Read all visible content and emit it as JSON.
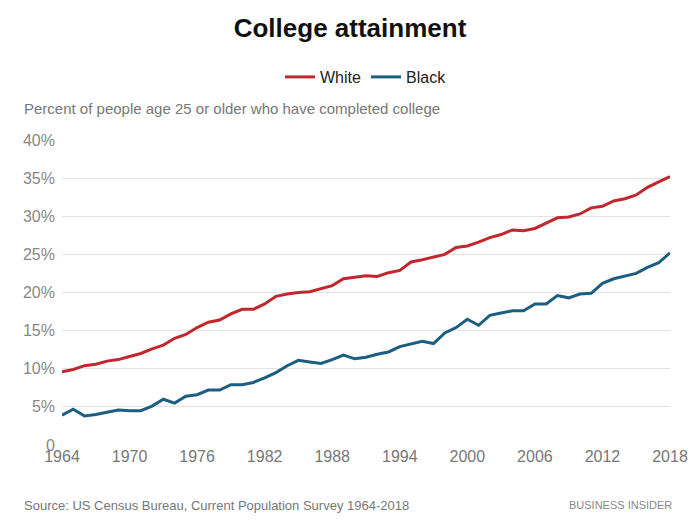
{
  "chart_data": {
    "type": "line",
    "title": "College attainment",
    "subtitle": "Percent of people age 25 or older who have completed college",
    "annotations": [
      "Source: US Census Bureau, Current Population Survey 1964-2018",
      "BUSINESS INSIDER"
    ],
    "x": [
      1964,
      1965,
      1966,
      1967,
      1968,
      1969,
      1970,
      1971,
      1972,
      1973,
      1974,
      1975,
      1976,
      1977,
      1978,
      1979,
      1980,
      1981,
      1982,
      1983,
      1984,
      1985,
      1986,
      1987,
      1988,
      1989,
      1990,
      1991,
      1992,
      1993,
      1994,
      1995,
      1996,
      1997,
      1998,
      1999,
      2000,
      2001,
      2002,
      2003,
      2004,
      2005,
      2006,
      2007,
      2008,
      2009,
      2010,
      2011,
      2012,
      2013,
      2014,
      2015,
      2016,
      2017,
      2018
    ],
    "series": [
      {
        "name": "White",
        "color": "#c1272d",
        "values": [
          9.6,
          9.9,
          10.4,
          10.6,
          11.0,
          11.2,
          11.6,
          12.0,
          12.6,
          13.1,
          14.0,
          14.5,
          15.4,
          16.1,
          16.4,
          17.2,
          17.8,
          17.8,
          18.5,
          19.5,
          19.8,
          20.0,
          20.1,
          20.5,
          20.9,
          21.8,
          22.0,
          22.2,
          22.1,
          22.6,
          22.9,
          24.0,
          24.3,
          24.6,
          25.0,
          25.9,
          26.1,
          26.6,
          27.2,
          27.6,
          28.2,
          28.1,
          28.4,
          29.1,
          29.8,
          29.9,
          30.3,
          31.1,
          31.3,
          32.0,
          32.3,
          32.8,
          33.8,
          34.5,
          35.2
        ]
      },
      {
        "name": "Black",
        "color": "#1b5e80",
        "values": [
          3.9,
          4.7,
          3.8,
          4.0,
          4.3,
          4.6,
          4.5,
          4.5,
          5.1,
          6.0,
          5.5,
          6.4,
          6.6,
          7.2,
          7.2,
          7.9,
          7.9,
          8.2,
          8.8,
          9.5,
          10.4,
          11.1,
          10.9,
          10.7,
          11.2,
          11.8,
          11.3,
          11.5,
          11.9,
          12.2,
          12.9,
          13.2,
          13.6,
          13.3,
          14.7,
          15.4,
          16.5,
          15.7,
          17.0,
          17.3,
          17.6,
          17.6,
          18.5,
          18.5,
          19.6,
          19.3,
          19.8,
          19.9,
          21.2,
          21.8,
          22.2,
          22.5,
          23.3,
          23.9,
          25.2
        ]
      }
    ],
    "xlim": [
      1964,
      2018
    ],
    "xticks": [
      1964,
      1970,
      1976,
      1982,
      1988,
      1994,
      2000,
      2006,
      2012,
      2018
    ],
    "ylim": [
      0,
      40
    ],
    "yticks": [
      0,
      {
        "value": 5,
        "label": "5%"
      },
      {
        "value": 10,
        "label": "10%"
      },
      {
        "value": 15,
        "label": "15%"
      },
      {
        "value": 20,
        "label": "20%"
      },
      {
        "value": 25,
        "label": "25%"
      },
      {
        "value": 30,
        "label": "30%"
      },
      {
        "value": 35,
        "label": "35%"
      },
      {
        "value": 40,
        "label": "40%"
      }
    ],
    "grid": true,
    "legend": "top"
  }
}
